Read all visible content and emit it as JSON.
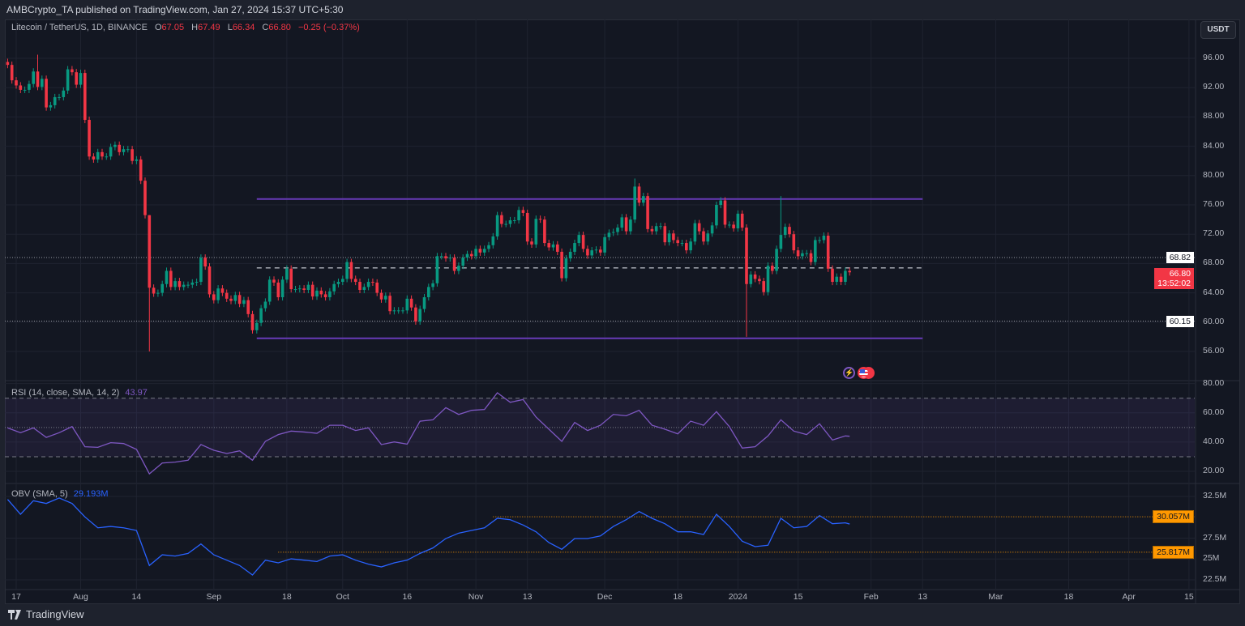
{
  "header": {
    "published": "AMBCrypto_TA published on TradingView.com, Jan 27, 2024 15:37 UTC+5:30"
  },
  "legend": {
    "symbol": "Litecoin / TetherUS, 1D, BINANCE",
    "o_label": "O",
    "o": "67.05",
    "h_label": "H",
    "h": "67.49",
    "l_label": "L",
    "l": "66.34",
    "c_label": "C",
    "c": "66.80",
    "change": "−0.25 (−0.37%)"
  },
  "currency_button": "USDT",
  "price_tags": {
    "resistance": "68.82",
    "last_price": "66.80",
    "countdown": "13:52:02",
    "support": "60.15"
  },
  "rsi_pane": {
    "title": "RSI (14, close, SMA, 14, 2)",
    "value": "43.97"
  },
  "obv_pane": {
    "title": "OBV (SMA, 5)",
    "value": "29.193M",
    "tag_high": "30.057M",
    "tag_low": "25.817M"
  },
  "footer": {
    "brand": "TradingView"
  },
  "event_icons": [
    "lightning-icon",
    "us-flag-icon"
  ],
  "colors": {
    "up": "#089981",
    "down": "#f23645",
    "rsi": "#7e57c2",
    "obv": "#2962ff",
    "range": "#673ab7",
    "last_price": "#f23645",
    "obv_level": "#ff9800"
  },
  "chart_data": [
    {
      "type": "candlestick",
      "title": "Litecoin / TetherUS, 1D, BINANCE",
      "interval": "1D",
      "last_date": "2024-01-27",
      "ylim": [
        54.5,
        98.5
      ],
      "y_ticks": [
        "96.00",
        "92.00",
        "88.00",
        "84.00",
        "80.00",
        "76.00",
        "72.00",
        "68.00",
        "64.00",
        "60.00",
        "56.00"
      ],
      "x_ticks": [
        {
          "label": "17",
          "date": "2023-07-17"
        },
        {
          "label": "Aug",
          "date": "2023-08-01"
        },
        {
          "label": "14",
          "date": "2023-08-14"
        },
        {
          "label": "Sep",
          "date": "2023-09-01"
        },
        {
          "label": "18",
          "date": "2023-09-18"
        },
        {
          "label": "Oct",
          "date": "2023-10-01"
        },
        {
          "label": "16",
          "date": "2023-10-16"
        },
        {
          "label": "Nov",
          "date": "2023-11-01"
        },
        {
          "label": "13",
          "date": "2023-11-13"
        },
        {
          "label": "Dec",
          "date": "2023-12-01"
        },
        {
          "label": "18",
          "date": "2023-12-18"
        },
        {
          "label": "2024",
          "date": "2024-01-01"
        },
        {
          "label": "15",
          "date": "2024-01-15"
        },
        {
          "label": "Feb",
          "date": "2024-02-01"
        },
        {
          "label": "13",
          "date": "2024-02-13"
        },
        {
          "label": "Mar",
          "date": "2024-03-01"
        },
        {
          "label": "18",
          "date": "2024-03-18"
        },
        {
          "label": "Apr",
          "date": "2024-04-01"
        },
        {
          "label": "15",
          "date": "2024-04-15"
        }
      ],
      "first_open": 95.5,
      "closes": [
        95.1,
        93.0,
        92.3,
        91.7,
        91.7,
        92.5,
        94.2,
        92.1,
        93.2,
        89.3,
        89.6,
        90.7,
        90.7,
        91.6,
        94.5,
        94.1,
        92.4,
        94.0,
        87.6,
        82.6,
        82.2,
        83.2,
        82.6,
        82.6,
        83.9,
        84.2,
        83.2,
        83.6,
        83.6,
        82.0,
        82.2,
        79.3,
        74.6,
        64.7,
        63.9,
        64.0,
        65.2,
        67.0,
        64.8,
        65.6,
        64.8,
        65.1,
        65.1,
        65.4,
        65.5,
        68.8,
        67.6,
        63.8,
        63.0,
        64.6,
        64.0,
        63.2,
        62.9,
        63.7,
        62.5,
        63.0,
        61.1,
        58.9,
        59.9,
        61.9,
        62.8,
        65.8,
        65.4,
        63.4,
        65.8,
        67.3,
        64.5,
        64.5,
        64.6,
        64.4,
        65.1,
        63.5,
        64.3,
        63.8,
        63.4,
        64.2,
        65.2,
        65.5,
        65.9,
        68.2,
        65.9,
        65.5,
        64.4,
        64.8,
        65.5,
        65.4,
        64.0,
        63.1,
        63.6,
        61.5,
        61.6,
        61.6,
        61.6,
        63.2,
        62.0,
        60.1,
        61.8,
        63.4,
        64.8,
        65.3,
        69.0,
        69.0,
        68.7,
        68.8,
        67.0,
        67.7,
        68.8,
        69.3,
        69.0,
        70.0,
        69.5,
        70.0,
        70.5,
        71.7,
        74.6,
        73.4,
        73.4,
        73.9,
        73.9,
        75.3,
        74.9,
        71.0,
        70.6,
        74.1,
        74.0,
        70.8,
        70.2,
        70.6,
        69.6,
        66.0,
        68.7,
        69.6,
        70.8,
        71.9,
        70.0,
        69.1,
        69.8,
        69.9,
        69.5,
        71.6,
        72.2,
        72.3,
        72.9,
        74.3,
        72.4,
        74.0,
        78.5,
        76.3,
        77.2,
        72.7,
        72.4,
        73.1,
        73.1,
        70.9,
        72.1,
        71.2,
        70.8,
        70.8,
        69.8,
        71.0,
        73.5,
        72.4,
        71.0,
        72.1,
        73.2,
        76.0,
        76.6,
        73.3,
        73.3,
        72.8,
        74.8,
        72.9,
        65.2,
        66.5,
        65.9,
        65.6,
        64.1,
        67.7,
        67.0,
        70.0,
        71.9,
        73.0,
        72.0,
        69.8,
        69.0,
        69.4,
        69.4,
        68.2,
        71.2,
        71.2,
        71.8,
        67.3,
        65.5,
        66.2,
        65.5,
        67.0,
        66.8
      ],
      "notable_wicks": [
        {
          "date": "2023-07-22",
          "high": 96.5
        },
        {
          "date": "2023-08-17",
          "high": 74.6,
          "low": 56.0
        },
        {
          "date": "2023-12-08",
          "high": 79.6
        },
        {
          "date": "2024-01-03",
          "low": 58.0
        },
        {
          "date": "2024-01-11",
          "high": 77.2
        }
      ],
      "horizontal_levels": [
        {
          "name": "range-high",
          "value": 76.8,
          "style": "solid",
          "from": "2023-09-11",
          "to": "2024-02-13"
        },
        {
          "name": "range-mid",
          "value": 67.4,
          "style": "dashed",
          "from": "2023-09-11",
          "to": "2024-02-13"
        },
        {
          "name": "range-low",
          "value": 57.8,
          "style": "solid",
          "from": "2023-09-11",
          "to": "2024-02-13"
        },
        {
          "name": "resistance",
          "value": 68.82,
          "style": "dotted"
        },
        {
          "name": "support",
          "value": 60.15,
          "style": "dotted"
        }
      ],
      "grid": true
    },
    {
      "type": "line",
      "title": "RSI (14, close, SMA, 14, 2)",
      "ylim": [
        10,
        85
      ],
      "y_ticks": [
        "80.00",
        "60.00",
        "40.00",
        "20.00"
      ],
      "bands": {
        "upper": 70,
        "middle": 50,
        "lower": 30
      },
      "points": [
        [
          "2023-07-15",
          49.7
        ],
        [
          "2023-07-18",
          46.4
        ],
        [
          "2023-07-21",
          49.7
        ],
        [
          "2023-07-24",
          43.2
        ],
        [
          "2023-07-27",
          46.4
        ],
        [
          "2023-07-30",
          50.6
        ],
        [
          "2023-08-02",
          36.8
        ],
        [
          "2023-08-05",
          36.4
        ],
        [
          "2023-08-08",
          39.6
        ],
        [
          "2023-08-11",
          39.0
        ],
        [
          "2023-08-14",
          35.0
        ],
        [
          "2023-08-17",
          18.3
        ],
        [
          "2023-08-20",
          25.7
        ],
        [
          "2023-08-23",
          26.3
        ],
        [
          "2023-08-26",
          27.6
        ],
        [
          "2023-08-29",
          38.3
        ],
        [
          "2023-09-01",
          34.4
        ],
        [
          "2023-09-04",
          32.2
        ],
        [
          "2023-09-07",
          34.0
        ],
        [
          "2023-09-10",
          27.6
        ],
        [
          "2023-09-13",
          40.5
        ],
        [
          "2023-09-16",
          45.1
        ],
        [
          "2023-09-19",
          47.5
        ],
        [
          "2023-09-22",
          46.9
        ],
        [
          "2023-09-25",
          46.0
        ],
        [
          "2023-09-28",
          51.5
        ],
        [
          "2023-10-01",
          51.5
        ],
        [
          "2023-10-04",
          47.9
        ],
        [
          "2023-10-07",
          49.7
        ],
        [
          "2023-10-10",
          38.3
        ],
        [
          "2023-10-13",
          40.1
        ],
        [
          "2023-10-16",
          38.6
        ],
        [
          "2023-10-19",
          54.3
        ],
        [
          "2023-10-22",
          55.2
        ],
        [
          "2023-10-25",
          63.5
        ],
        [
          "2023-10-28",
          58.9
        ],
        [
          "2023-10-31",
          61.7
        ],
        [
          "2023-11-03",
          62.3
        ],
        [
          "2023-11-06",
          73.7
        ],
        [
          "2023-11-09",
          67.2
        ],
        [
          "2023-11-12",
          69.1
        ],
        [
          "2023-11-15",
          57.1
        ],
        [
          "2023-11-18",
          48.8
        ],
        [
          "2023-11-21",
          40.5
        ],
        [
          "2023-11-24",
          53.4
        ],
        [
          "2023-11-27",
          47.9
        ],
        [
          "2023-11-30",
          51.5
        ],
        [
          "2023-12-03",
          58.9
        ],
        [
          "2023-12-06",
          58.0
        ],
        [
          "2023-12-09",
          61.7
        ],
        [
          "2023-12-12",
          51.5
        ],
        [
          "2023-12-15",
          48.8
        ],
        [
          "2023-12-18",
          45.6
        ],
        [
          "2023-12-21",
          54.3
        ],
        [
          "2023-12-24",
          51.5
        ],
        [
          "2023-12-27",
          60.8
        ],
        [
          "2023-12-30",
          50.6
        ],
        [
          "2024-01-02",
          35.9
        ],
        [
          "2024-01-05",
          36.8
        ],
        [
          "2024-01-08",
          44.2
        ],
        [
          "2024-01-11",
          55.2
        ],
        [
          "2024-01-14",
          47.5
        ],
        [
          "2024-01-17",
          45.1
        ],
        [
          "2024-01-20",
          52.5
        ],
        [
          "2024-01-23",
          41.4
        ],
        [
          "2024-01-26",
          44.2
        ],
        [
          "2024-01-27",
          43.97
        ]
      ]
    },
    {
      "type": "line",
      "title": "OBV (SMA, 5)",
      "unit": "M",
      "ylim": [
        21.5,
        34
      ],
      "y_ticks": [
        "32.5M",
        "27.5M",
        "25M",
        "22.5M"
      ],
      "levels": [
        {
          "value": 30.057,
          "from": "2023-11-05"
        },
        {
          "value": 25.817,
          "from": "2023-09-16"
        }
      ],
      "points": [
        [
          "2023-07-15",
          32.14
        ],
        [
          "2023-07-18",
          30.36
        ],
        [
          "2023-07-21",
          31.98
        ],
        [
          "2023-07-24",
          31.66
        ],
        [
          "2023-07-27",
          32.31
        ],
        [
          "2023-07-30",
          31.66
        ],
        [
          "2023-08-02",
          30.04
        ],
        [
          "2023-08-05",
          28.74
        ],
        [
          "2023-08-08",
          28.9
        ],
        [
          "2023-08-11",
          28.74
        ],
        [
          "2023-08-14",
          28.42
        ],
        [
          "2023-08-17",
          24.22
        ],
        [
          "2023-08-20",
          25.5
        ],
        [
          "2023-08-23",
          25.35
        ],
        [
          "2023-08-26",
          25.67
        ],
        [
          "2023-08-29",
          26.8
        ],
        [
          "2023-09-01",
          25.5
        ],
        [
          "2023-09-04",
          24.86
        ],
        [
          "2023-09-07",
          24.22
        ],
        [
          "2023-09-10",
          23.08
        ],
        [
          "2023-09-13",
          24.86
        ],
        [
          "2023-09-16",
          24.54
        ],
        [
          "2023-09-19",
          25.02
        ],
        [
          "2023-09-22",
          24.86
        ],
        [
          "2023-09-25",
          24.7
        ],
        [
          "2023-09-28",
          25.35
        ],
        [
          "2023-10-01",
          25.5
        ],
        [
          "2023-10-04",
          24.86
        ],
        [
          "2023-10-07",
          24.38
        ],
        [
          "2023-10-10",
          24.05
        ],
        [
          "2023-10-13",
          24.54
        ],
        [
          "2023-10-16",
          24.86
        ],
        [
          "2023-10-19",
          25.67
        ],
        [
          "2023-10-22",
          26.32
        ],
        [
          "2023-10-25",
          27.45
        ],
        [
          "2023-10-28",
          28.1
        ],
        [
          "2023-10-31",
          28.42
        ],
        [
          "2023-11-03",
          28.74
        ],
        [
          "2023-11-06",
          29.88
        ],
        [
          "2023-11-09",
          29.71
        ],
        [
          "2023-11-12",
          29.07
        ],
        [
          "2023-11-15",
          28.26
        ],
        [
          "2023-11-18",
          26.97
        ],
        [
          "2023-11-21",
          26.16
        ],
        [
          "2023-11-24",
          27.45
        ],
        [
          "2023-11-27",
          27.45
        ],
        [
          "2023-11-30",
          27.77
        ],
        [
          "2023-12-03",
          28.9
        ],
        [
          "2023-12-06",
          29.71
        ],
        [
          "2023-12-09",
          30.69
        ],
        [
          "2023-12-12",
          29.88
        ],
        [
          "2023-12-15",
          29.23
        ],
        [
          "2023-12-18",
          28.26
        ],
        [
          "2023-12-21",
          28.26
        ],
        [
          "2023-12-24",
          27.94
        ],
        [
          "2023-12-27",
          30.36
        ],
        [
          "2023-12-30",
          28.9
        ],
        [
          "2024-01-02",
          27.13
        ],
        [
          "2024-01-05",
          26.48
        ],
        [
          "2024-01-08",
          26.65
        ],
        [
          "2024-01-11",
          29.88
        ],
        [
          "2024-01-14",
          28.74
        ],
        [
          "2024-01-17",
          28.9
        ],
        [
          "2024-01-20",
          30.2
        ],
        [
          "2024-01-23",
          29.23
        ],
        [
          "2024-01-26",
          29.33
        ],
        [
          "2024-01-27",
          29.193
        ]
      ]
    }
  ]
}
